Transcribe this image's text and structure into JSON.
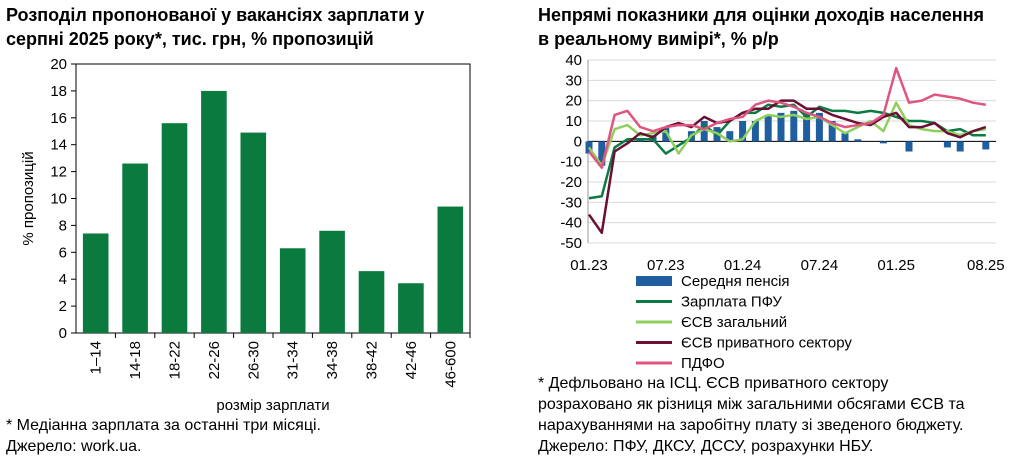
{
  "left": {
    "title_line1": "Розподіл пропонованої у вакансіях зарплати у",
    "title_line2": "серпні 2025 року*, тис. грн, % пропозицій",
    "note1": "* Медіанна зарплата за останні три місяці.",
    "note2": "Джерело: work.ua."
  },
  "right": {
    "title_line1": "Непрямі показники для оцінки доходів населення",
    "title_line2": "в реальному вимірі*, % р/р",
    "note1": "* Дефльовано на ІСЦ. ЄСВ приватного сектору",
    "note2": "розраховано як різниця між загальними обсягами ЄСВ та",
    "note3": "нарахуваннями на заробітну плату зі зведеного бюджету.",
    "note4": "Джерело: ПФУ, ДКСУ, ДССУ, розрахунки НБУ."
  },
  "colors": {
    "bar_green": "#0a7a3e",
    "pension": "#1f5f9f",
    "pfu_wage": "#0c7a43",
    "esv_total": "#8fcf5f",
    "esv_private": "#6b1035",
    "pdfo": "#e0557e"
  },
  "chart_data": [
    {
      "type": "bar",
      "title": "Розподіл пропонованої у вакансіях зарплати у серпні 2025 року*, тис. грн, % пропозицій",
      "categories": [
        "1–14",
        "14-18",
        "18-22",
        "22-26",
        "26-30",
        "31-34",
        "34-38",
        "38-42",
        "42-46",
        "46-600"
      ],
      "values": [
        7.4,
        12.6,
        15.6,
        18.0,
        14.9,
        6.3,
        7.6,
        4.6,
        3.7,
        9.4
      ],
      "xlabel": "розмір зарплати",
      "ylabel": "% пропозицій",
      "ylim": [
        0,
        20
      ],
      "yticks": [
        "0",
        "2",
        "4",
        "6",
        "8",
        "10",
        "12",
        "14",
        "16",
        "18",
        "20"
      ],
      "grid": false
    },
    {
      "type": "line",
      "title": "Непрямі показники для оцінки доходів населення в реальному вимірі*, % р/р",
      "x": [
        "01.23",
        "02.23",
        "03.23",
        "04.23",
        "05.23",
        "06.23",
        "07.23",
        "08.23",
        "09.23",
        "10.23",
        "11.23",
        "12.23",
        "01.24",
        "02.24",
        "03.24",
        "04.24",
        "05.24",
        "06.24",
        "07.24",
        "08.24",
        "09.24",
        "10.24",
        "11.24",
        "12.24",
        "01.25",
        "02.25",
        "03.25",
        "04.25",
        "05.25",
        "06.25",
        "07.25",
        "08.25"
      ],
      "xticks": [
        "01.23",
        "07.23",
        "01.24",
        "07.24",
        "01.25",
        "08.25"
      ],
      "ylim": [
        -50,
        40
      ],
      "yticks": [
        "-50",
        "-40",
        "-30",
        "-20",
        "-10",
        "0",
        "10",
        "20",
        "30",
        "40"
      ],
      "grid": true,
      "legend_position": "below",
      "series": [
        {
          "name": "Середня пенсія",
          "type": "bar",
          "values": [
            -6.0,
            -12.0,
            null,
            null,
            1.0,
            3.0,
            7.0,
            null,
            5.0,
            10.0,
            7.0,
            5.0,
            10.0,
            10.0,
            13.0,
            14.0,
            15.0,
            14.0,
            14.0,
            10.0,
            4.0,
            1.0,
            null,
            -1.0,
            null,
            -5.0,
            null,
            null,
            -3.0,
            -5.0,
            null,
            -4.0
          ]
        },
        {
          "name": "Зарплата ПФУ",
          "values": [
            -28,
            -27,
            -3,
            1,
            1,
            1,
            -6,
            -2,
            2,
            8,
            3,
            10,
            14,
            14,
            18,
            17,
            18,
            12,
            17,
            15,
            15,
            14,
            15,
            14,
            12,
            10,
            10,
            9,
            5,
            6,
            3,
            3
          ]
        },
        {
          "name": "ЄСВ загальний",
          "values": [
            -3,
            -12,
            6,
            8,
            3,
            4,
            5,
            -6,
            3,
            6,
            4,
            0,
            1,
            10,
            13,
            12,
            13,
            11,
            12,
            8,
            4,
            7,
            10,
            5,
            19,
            8,
            6,
            5,
            5,
            3,
            5,
            6
          ]
        },
        {
          "name": "ЄСВ приватного сектору",
          "values": [
            -36,
            -45,
            -5,
            -1,
            4,
            2,
            7,
            9,
            7,
            12,
            9,
            10,
            14,
            16,
            16,
            20,
            20,
            16,
            16,
            13,
            11,
            9,
            8,
            12,
            14,
            7,
            7,
            9,
            4,
            2,
            5,
            7
          ]
        },
        {
          "name": "ПДФО",
          "values": [
            -5,
            -13,
            13,
            15,
            7,
            5,
            7,
            8,
            8,
            6,
            9,
            11,
            12,
            18,
            20,
            19,
            17,
            14,
            12,
            9,
            7,
            8,
            9,
            13,
            36,
            19,
            20,
            23,
            22,
            21,
            19,
            18
          ]
        }
      ]
    }
  ]
}
